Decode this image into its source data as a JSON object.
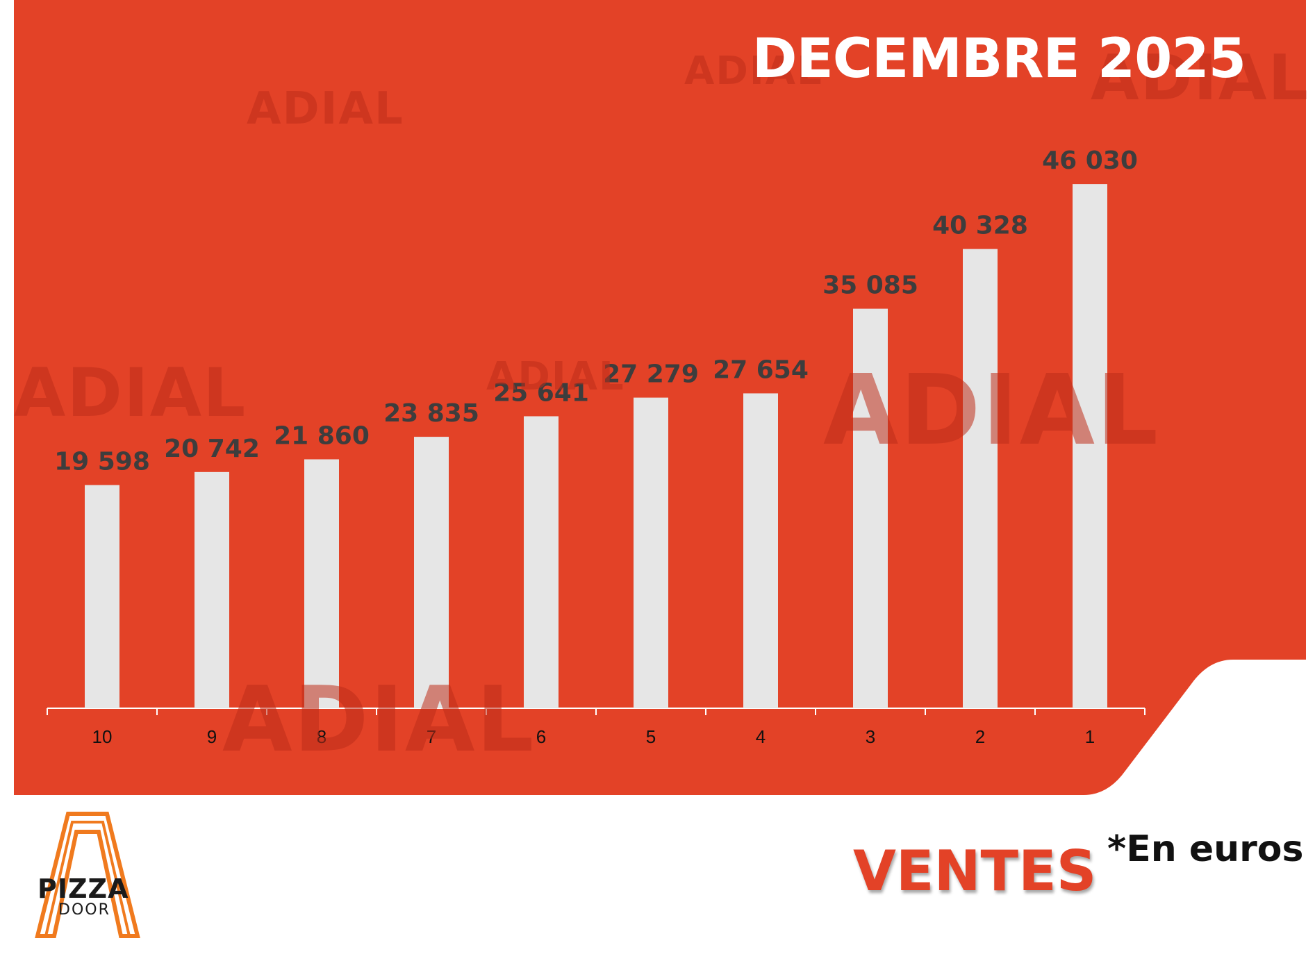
{
  "colors": {
    "background_red": "#e34227",
    "bar_fill": "#e6e6e6",
    "value_label": "#3d3d3d",
    "title_text": "#ffffff",
    "ventes_text": "#e34227",
    "logo_orange": "#f07a1e"
  },
  "watermark": {
    "text": "ADIAL"
  },
  "header": {
    "title": "DECEMBRE 2025"
  },
  "footer": {
    "ventes_label": "VENTES",
    "unit_note": "*En euros"
  },
  "logo": {
    "line1": "PIZZA",
    "line2": "DOOR"
  },
  "chart_data": {
    "type": "bar",
    "title": "DECEMBRE 2025",
    "xlabel": "",
    "ylabel": "",
    "categories": [
      "10",
      "9",
      "8",
      "7",
      "6",
      "5",
      "4",
      "3",
      "2",
      "1"
    ],
    "values": [
      19598,
      20742,
      21860,
      23835,
      25641,
      27279,
      27654,
      35085,
      40328,
      46030
    ],
    "value_labels": [
      "19 598",
      "20 742",
      "21 860",
      "23 835",
      "25 641",
      "27 279",
      "27 654",
      "35 085",
      "40 328",
      "46 030"
    ],
    "ylim": [
      0,
      50000
    ],
    "grid": false,
    "legend": "none"
  }
}
